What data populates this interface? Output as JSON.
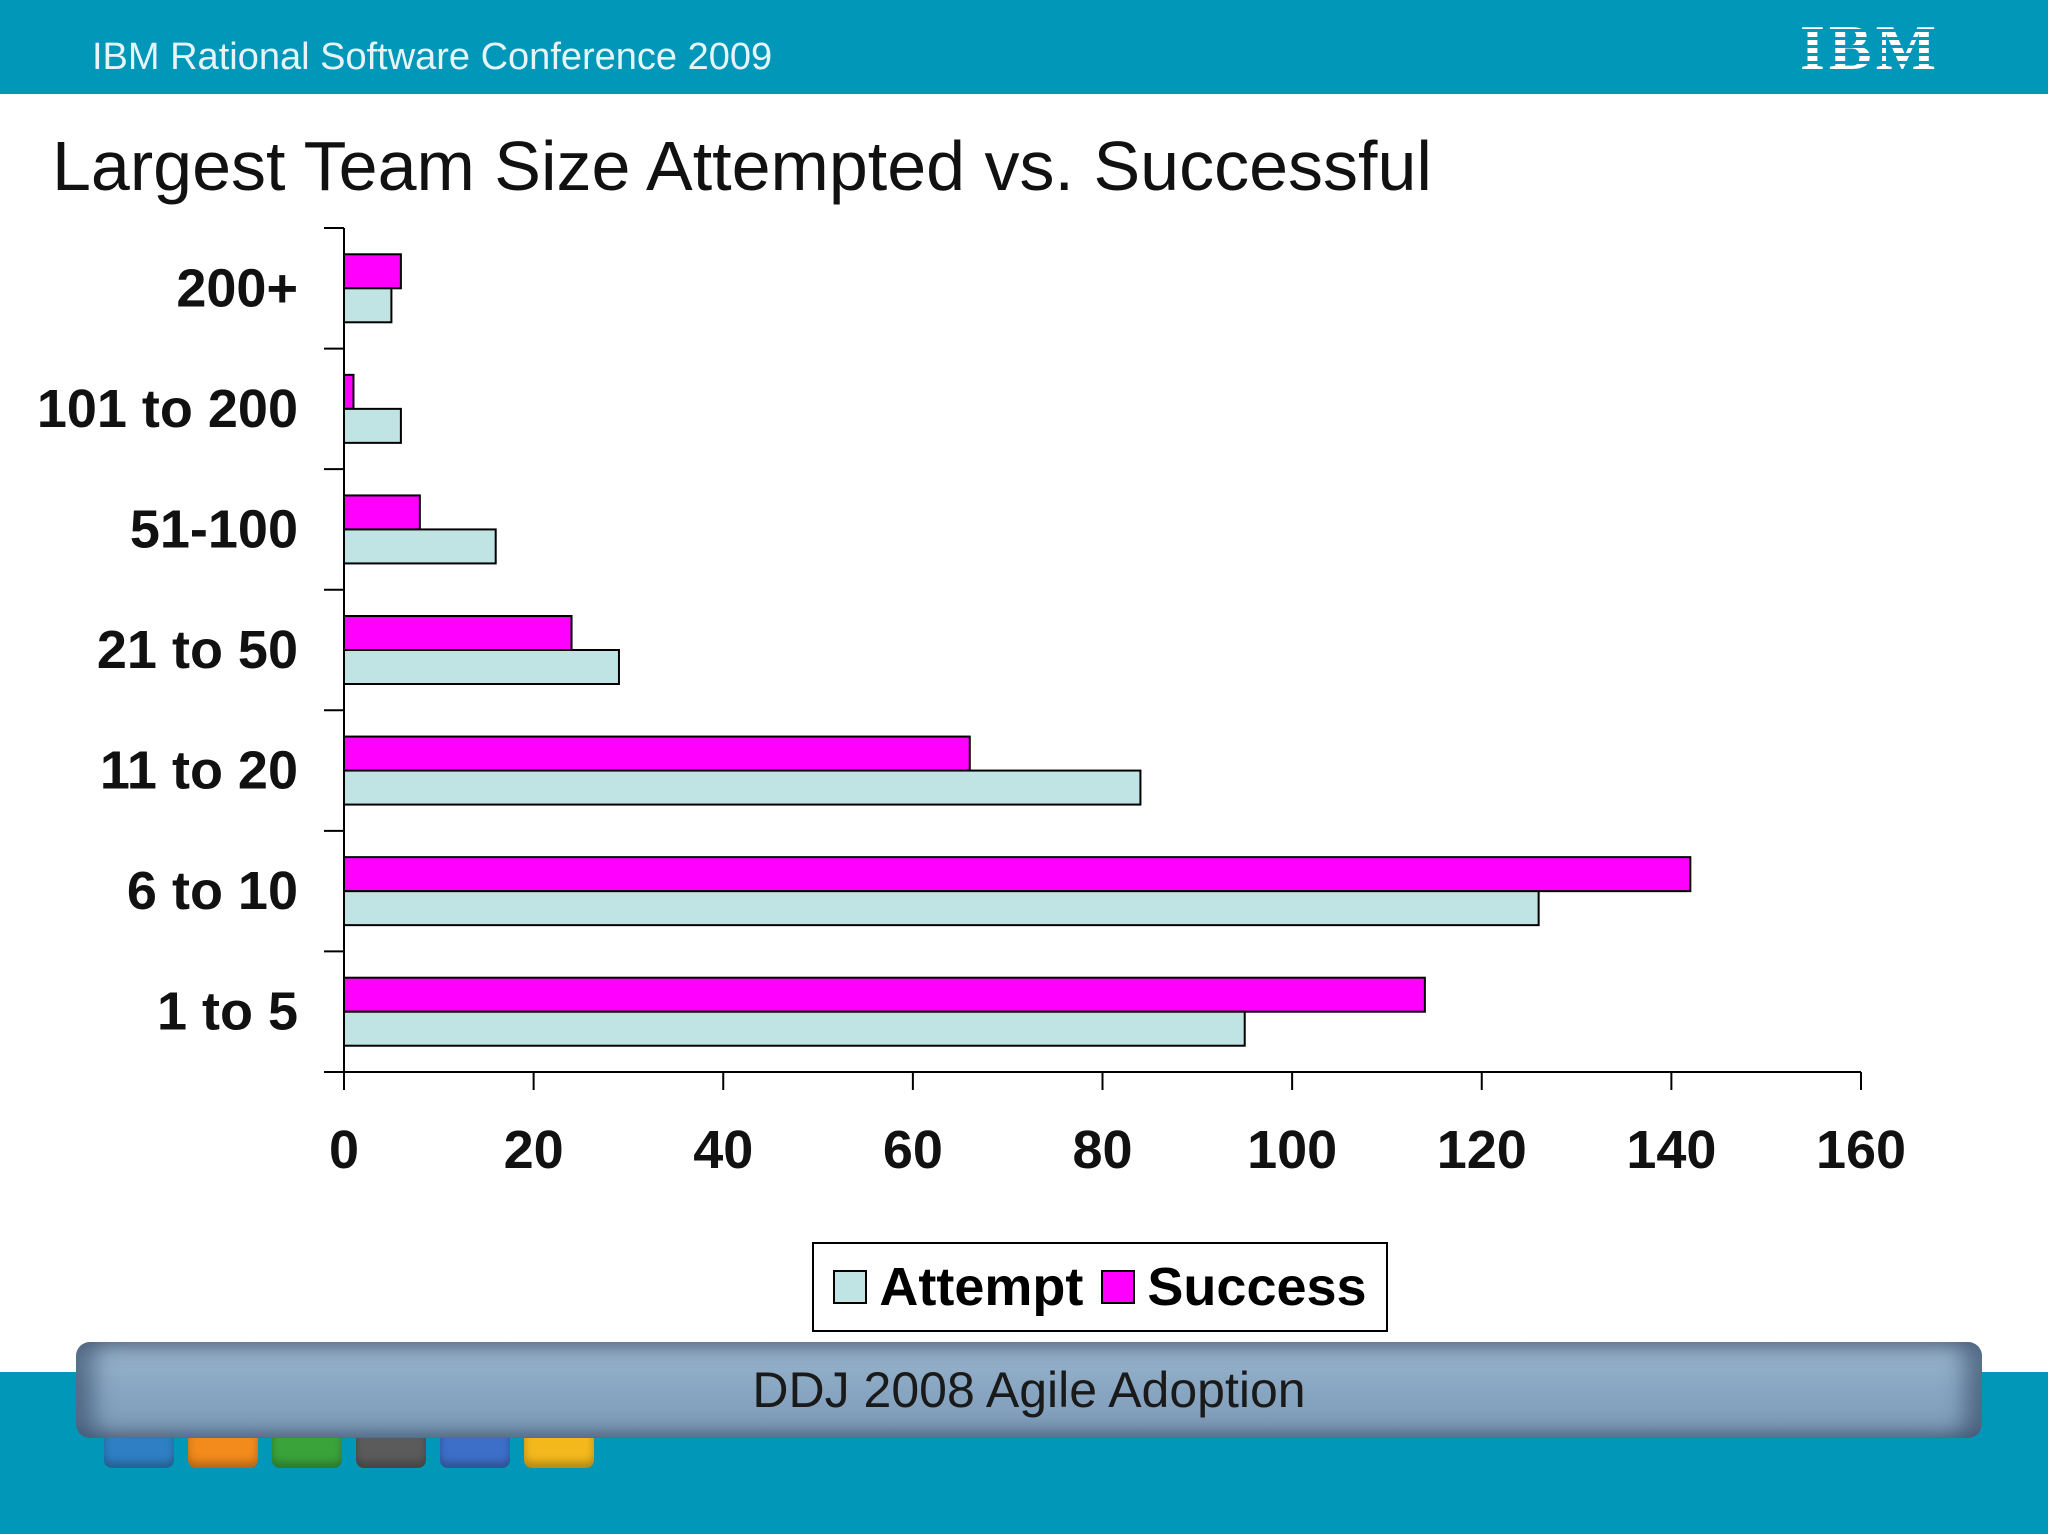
{
  "header": {
    "conference": "IBM Rational Software Conference 2009",
    "logo": "IBM"
  },
  "colors": {
    "header_band": "#0097b8",
    "attempt": "#c0e3e3",
    "success": "#ff00ff"
  },
  "chart_data": {
    "type": "bar",
    "orientation": "horizontal",
    "title": "Largest Team Size Attempted vs. Successful",
    "categories": [
      "200+",
      "101 to 200",
      "51-100",
      "21 to 50",
      "11 to 20",
      "6 to 10",
      "1 to 5"
    ],
    "series": [
      {
        "name": "Attempt",
        "values": [
          5,
          6,
          16,
          29,
          84,
          126,
          95
        ]
      },
      {
        "name": "Success",
        "values": [
          6,
          1,
          8,
          24,
          66,
          142,
          114
        ]
      }
    ],
    "xlim": [
      0,
      160
    ],
    "xticks": [
      0,
      20,
      40,
      60,
      80,
      100,
      120,
      140,
      160
    ],
    "grid": false,
    "legend": "bottom-center"
  },
  "legend": {
    "attempt_label": "Attempt",
    "success_label": "Success"
  },
  "footer": {
    "source": "DDJ 2008 Agile Adoption",
    "dock_icons": [
      "ibm-icon",
      "presenter-icon",
      "board-icon",
      "laptop-icon",
      "megaphone-icon",
      "toolbox-icon"
    ]
  }
}
